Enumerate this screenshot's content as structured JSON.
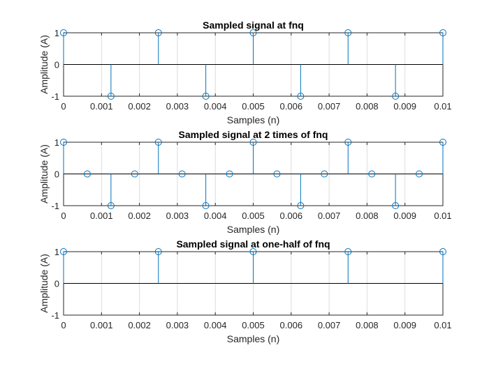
{
  "chart_data": [
    {
      "type": "stem",
      "title": "Sampled signal at fnq",
      "xlabel": "Samples (n)",
      "ylabel": "Amplitude (A)",
      "xlim": [
        0,
        0.01
      ],
      "ylim": [
        -1,
        1
      ],
      "xticks": [
        "0",
        "0.001",
        "0.002",
        "0.003",
        "0.004",
        "0.005",
        "0.006",
        "0.007",
        "0.008",
        "0.009",
        "0.01"
      ],
      "yticks": [
        "-1",
        "0",
        "1"
      ],
      "grid": "x",
      "series": [
        {
          "x": [
            0,
            0.00125,
            0.0025,
            0.00375,
            0.005,
            0.00625,
            0.0075,
            0.00875,
            0.01
          ],
          "y": [
            1,
            -1,
            1,
            -1,
            1,
            -1,
            1,
            -1,
            1
          ]
        }
      ]
    },
    {
      "type": "stem",
      "title": "Sampled signal at 2 times of fnq",
      "xlabel": "Samples (n)",
      "ylabel": "Amplitude (A)",
      "xlim": [
        0,
        0.01
      ],
      "ylim": [
        -1,
        1
      ],
      "xticks": [
        "0",
        "0.001",
        "0.002",
        "0.003",
        "0.004",
        "0.005",
        "0.006",
        "0.007",
        "0.008",
        "0.009",
        "0.01"
      ],
      "yticks": [
        "-1",
        "0",
        "1"
      ],
      "grid": "x",
      "series": [
        {
          "x": [
            0,
            0.000625,
            0.00125,
            0.001875,
            0.0025,
            0.003125,
            0.00375,
            0.004375,
            0.005,
            0.005625,
            0.00625,
            0.006875,
            0.0075,
            0.008125,
            0.00875,
            0.009375,
            0.01
          ],
          "y": [
            1,
            0,
            -1,
            0,
            1,
            0,
            -1,
            0,
            1,
            0,
            -1,
            0,
            1,
            0,
            -1,
            0,
            1
          ]
        }
      ]
    },
    {
      "type": "stem",
      "title": "Sampled signal at one-half of fnq",
      "xlabel": "Samples (n)",
      "ylabel": "Amplitude (A)",
      "xlim": [
        0,
        0.01
      ],
      "ylim": [
        -1,
        1
      ],
      "xticks": [
        "0",
        "0.001",
        "0.002",
        "0.003",
        "0.004",
        "0.005",
        "0.006",
        "0.007",
        "0.008",
        "0.009",
        "0.01"
      ],
      "yticks": [
        "-1",
        "0",
        "1"
      ],
      "grid": "x",
      "series": [
        {
          "x": [
            0,
            0.0025,
            0.005,
            0.0075,
            0.01
          ],
          "y": [
            1,
            1,
            1,
            1,
            1
          ]
        }
      ]
    }
  ],
  "colors": {
    "stem": "#0072bd",
    "axes": "#262626",
    "grid": "#dcdcdc",
    "background": "#ffffff"
  }
}
